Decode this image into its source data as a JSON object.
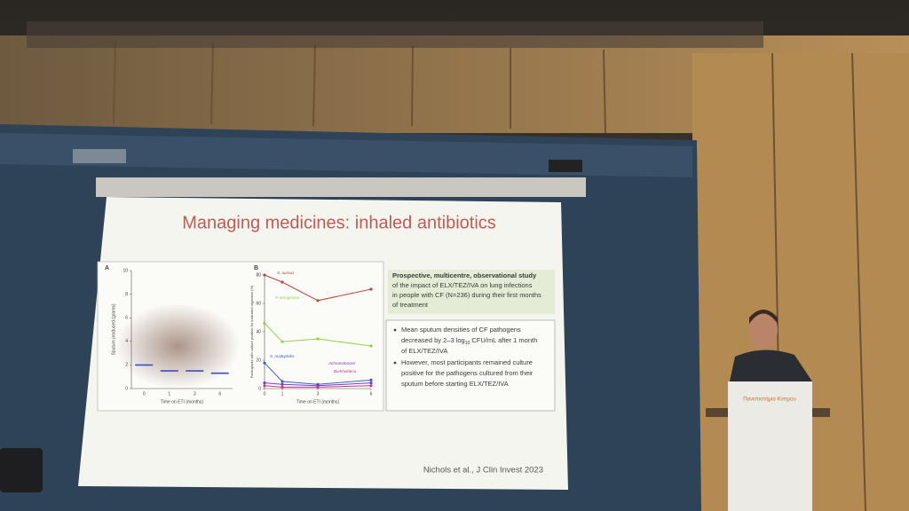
{
  "slide": {
    "title": "Managing medicines: inhaled antibiotics",
    "figure": {
      "panel_a": {
        "label": "A",
        "y_label": "Sputum produced (grams)",
        "x_label": "Time on ETI (months)",
        "categories": [
          "0",
          "1",
          "3",
          "6"
        ],
        "ylim": [
          0,
          10
        ],
        "yticks": [
          0,
          2,
          4,
          6,
          8,
          10
        ],
        "medians": [
          2,
          1.5,
          1.5,
          1.3
        ],
        "median_color": "#3b4fc4"
      },
      "panel_b": {
        "label": "B",
        "y_label": "Participants with culture positive for indicated organism (%)",
        "x_label": "Time on ETI (months)",
        "x": [
          0,
          1,
          3,
          6
        ],
        "xlim": [
          0,
          6
        ],
        "xticks": [
          0,
          1,
          3,
          6
        ],
        "ylim": [
          0,
          80
        ],
        "yticks": [
          0,
          20,
          40,
          60,
          80
        ],
        "series": [
          {
            "name": "S. aureus",
            "color": "#b5473a",
            "values": [
              80,
              75,
              62,
              70
            ]
          },
          {
            "name": "P. aeruginosa",
            "color": "#8fd14f",
            "values": [
              46,
              33,
              35,
              30
            ]
          },
          {
            "name": "S. maltophilia",
            "color": "#3b5fc4",
            "values": [
              18,
              5,
              3,
              6
            ]
          },
          {
            "name": "Achromobacter",
            "color": "#7a3bc4",
            "values": [
              4,
              3,
              2,
              4
            ]
          },
          {
            "name": "Burkholderia",
            "color": "#c43b8a",
            "values": [
              2,
              1,
              1,
              2
            ]
          }
        ]
      }
    },
    "summary": {
      "lead": "Prospective, multicentre, observational study",
      "lines": [
        "of the impact of ELX/TEZ/IVA on lung infections",
        "in people with CF (N=236) during their first months",
        "of treatment"
      ]
    },
    "bullets": [
      {
        "lines": [
          "Mean sputum densities of CF pathogens",
          "decreased by 2–3 log",
          "10",
          " CFU/mL after 1 month",
          "of ELX/TEZ/IVA"
        ]
      },
      {
        "lines": [
          "However, most participants remained culture",
          "positive for the pathogens cultured from their",
          "sputum before starting ELX/TEZ/IVA"
        ]
      }
    ],
    "citation": "Nichols et al., J Clin Invest 2023"
  },
  "podium": {
    "name": "Πανεπιστήμιο Κύπρου"
  }
}
